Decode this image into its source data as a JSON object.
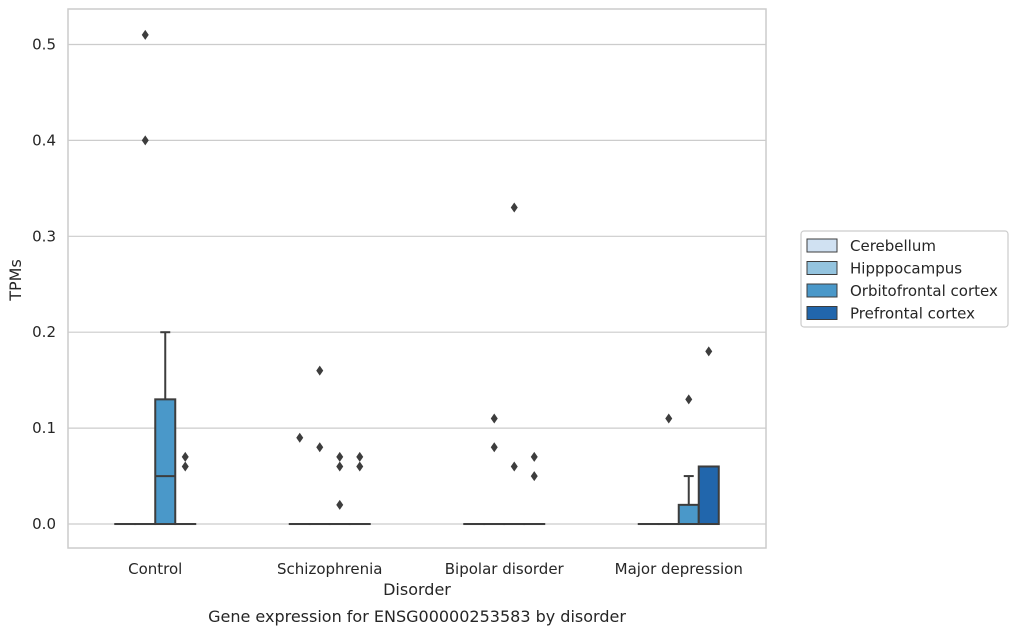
{
  "chart_data": {
    "type": "box",
    "title": "",
    "caption": "Gene expression for ENSG00000253583 by disorder",
    "xlabel": "Disorder",
    "ylabel": "TPMs",
    "ylim": [
      -0.025,
      0.537
    ],
    "yticks": [
      0.0,
      0.1,
      0.2,
      0.3,
      0.4,
      0.5
    ],
    "ytick_labels": [
      "0.0",
      "0.1",
      "0.2",
      "0.3",
      "0.4",
      "0.5"
    ],
    "grid": "horizontal",
    "legend_position": "right",
    "categories": [
      "Control",
      "Schizophrenia",
      "Bipolar disorder",
      "Major depression"
    ],
    "series": [
      {
        "name": "Cerebellum",
        "color": "#d0e1f2",
        "boxes": [
          {
            "q1": 0,
            "median": 0,
            "q3": 0,
            "whislo": 0,
            "whishi": 0,
            "fliers": []
          },
          {
            "q1": 0,
            "median": 0,
            "q3": 0,
            "whislo": 0,
            "whishi": 0,
            "fliers": [
              0.09
            ]
          },
          {
            "q1": 0,
            "median": 0,
            "q3": 0,
            "whislo": 0,
            "whishi": 0,
            "fliers": []
          },
          {
            "q1": 0,
            "median": 0,
            "q3": 0,
            "whislo": 0,
            "whishi": 0,
            "fliers": []
          }
        ]
      },
      {
        "name": "Hipppocampus",
        "color": "#94c4df",
        "boxes": [
          {
            "q1": 0,
            "median": 0,
            "q3": 0,
            "whislo": 0,
            "whishi": 0,
            "fliers": [
              0.4,
              0.51
            ]
          },
          {
            "q1": 0,
            "median": 0,
            "q3": 0,
            "whislo": 0,
            "whishi": 0,
            "fliers": [
              0.08,
              0.16
            ]
          },
          {
            "q1": 0,
            "median": 0,
            "q3": 0,
            "whislo": 0,
            "whishi": 0,
            "fliers": [
              0.08,
              0.11
            ]
          },
          {
            "q1": 0,
            "median": 0,
            "q3": 0,
            "whislo": 0,
            "whishi": 0,
            "fliers": [
              0.11
            ]
          }
        ]
      },
      {
        "name": "Orbitofrontal cortex",
        "color": "#4a98c9",
        "boxes": [
          {
            "q1": 0,
            "median": 0.05,
            "q3": 0.13,
            "whislo": 0,
            "whishi": 0.2,
            "fliers": []
          },
          {
            "q1": 0,
            "median": 0,
            "q3": 0,
            "whislo": 0,
            "whishi": 0,
            "fliers": [
              0.02,
              0.06,
              0.07
            ]
          },
          {
            "q1": 0,
            "median": 0,
            "q3": 0,
            "whislo": 0,
            "whishi": 0,
            "fliers": [
              0.06,
              0.33
            ]
          },
          {
            "q1": 0,
            "median": 0,
            "q3": 0.02,
            "whislo": 0,
            "whishi": 0.05,
            "fliers": [
              0.13
            ]
          }
        ]
      },
      {
        "name": "Prefrontal cortex",
        "color": "#2166ac",
        "boxes": [
          {
            "q1": 0,
            "median": 0,
            "q3": 0,
            "whislo": 0,
            "whishi": 0,
            "fliers": [
              0.06,
              0.07
            ]
          },
          {
            "q1": 0,
            "median": 0,
            "q3": 0,
            "whislo": 0,
            "whishi": 0,
            "fliers": [
              0.06,
              0.07
            ]
          },
          {
            "q1": 0,
            "median": 0,
            "q3": 0,
            "whislo": 0,
            "whishi": 0,
            "fliers": [
              0.05,
              0.07
            ]
          },
          {
            "q1": 0,
            "median": 0,
            "q3": 0.06,
            "whislo": 0,
            "whishi": 0.06,
            "fliers": [
              0.18
            ]
          }
        ]
      }
    ]
  }
}
